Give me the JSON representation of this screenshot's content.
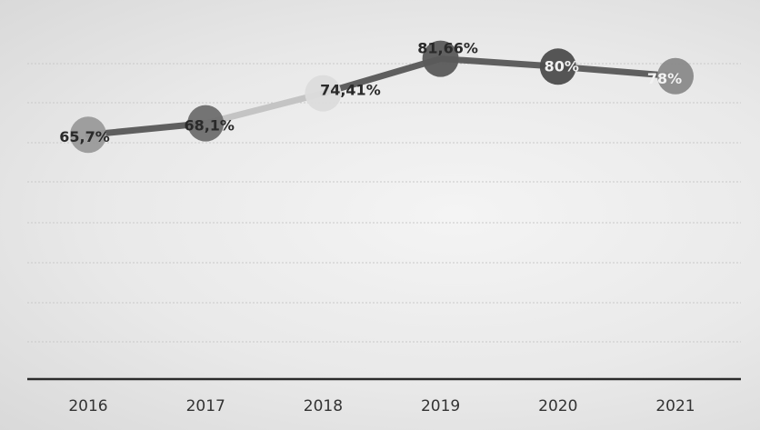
{
  "chart_data": {
    "type": "line",
    "categories": [
      "2016",
      "2017",
      "2018",
      "2019",
      "2020",
      "2021"
    ],
    "series": [
      {
        "values": [
          65.7,
          68.1,
          74.41,
          81.66,
          80,
          78
        ],
        "labels": [
          "65,7%",
          "68,1%",
          "74,41%",
          "81,66%",
          "80%",
          "78%"
        ]
      }
    ],
    "marker_colors": [
      "#9a9a9a",
      "#6e6e6e",
      "#dcdcdc",
      "#5a5a5a",
      "#4d4d4d",
      "#8a8a8a"
    ],
    "line_color": "#5f5f5f",
    "ylim": [
      0,
      100
    ],
    "grid": true,
    "legend": "none"
  }
}
